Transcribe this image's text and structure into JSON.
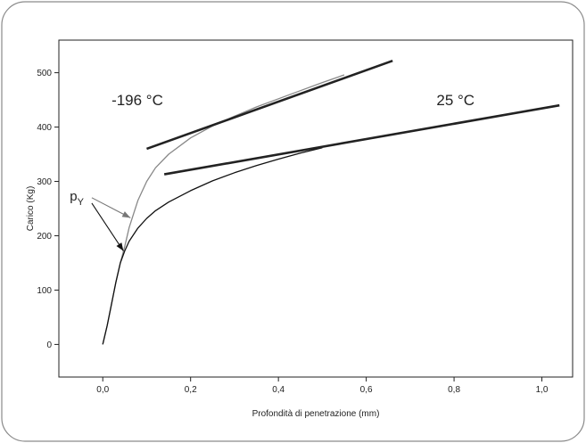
{
  "chart_data": {
    "type": "line",
    "xlabel": "Profondità di penetrazione (mm)",
    "ylabel": "Carico (Kg)",
    "xlim": [
      -0.1,
      1.07
    ],
    "ylim": [
      -60,
      560
    ],
    "xticks": [
      0.0,
      0.2,
      0.4,
      0.6,
      0.8,
      1.0
    ],
    "xtick_labels": [
      "0,0",
      "0,2",
      "0,4",
      "0,6",
      "0,8",
      "1,0"
    ],
    "yticks": [
      0,
      100,
      200,
      300,
      400,
      500
    ],
    "ytick_labels": [
      "0",
      "100",
      "200",
      "300",
      "400",
      "500"
    ],
    "grid": false,
    "legend": "none",
    "series": [
      {
        "name": "-196 °C",
        "color": "#888888",
        "x": [
          0.0,
          0.01,
          0.02,
          0.03,
          0.04,
          0.05,
          0.06,
          0.07,
          0.08,
          0.1,
          0.12,
          0.15,
          0.2,
          0.25,
          0.3,
          0.35,
          0.4,
          0.45,
          0.5,
          0.55
        ],
        "y": [
          0,
          35,
          75,
          115,
          150,
          180,
          215,
          240,
          265,
          300,
          325,
          350,
          380,
          402,
          420,
          437,
          452,
          467,
          482,
          496
        ]
      },
      {
        "name": "25 °C",
        "color": "#111111",
        "x": [
          0.0,
          0.01,
          0.02,
          0.03,
          0.04,
          0.05,
          0.06,
          0.08,
          0.1,
          0.12,
          0.15,
          0.2,
          0.25,
          0.3,
          0.35,
          0.4,
          0.45,
          0.5
        ],
        "y": [
          0,
          35,
          75,
          115,
          150,
          172,
          190,
          214,
          232,
          246,
          262,
          283,
          301,
          316,
          329,
          341,
          352,
          362
        ]
      }
    ],
    "tangents": [
      {
        "name": "tangent -196 °C",
        "x": [
          0.1,
          0.66
        ],
        "y": [
          360,
          522
        ]
      },
      {
        "name": "tangent 25 °C",
        "x": [
          0.14,
          1.04
        ],
        "y": [
          313,
          440
        ]
      }
    ],
    "annotations": [
      {
        "text": "-196 °C",
        "x": 0.02,
        "y": 440
      },
      {
        "text": "25 °C",
        "x": 0.76,
        "y": 440
      },
      {
        "text": "p",
        "subscript": "Y",
        "x": -0.075,
        "y": 265
      }
    ],
    "arrows": [
      {
        "name": "arrow-py-196",
        "from": [
          -0.025,
          270
        ],
        "to": [
          0.063,
          233
        ]
      },
      {
        "name": "arrow-py-25",
        "from": [
          -0.025,
          260
        ],
        "to": [
          0.047,
          172
        ]
      }
    ]
  }
}
